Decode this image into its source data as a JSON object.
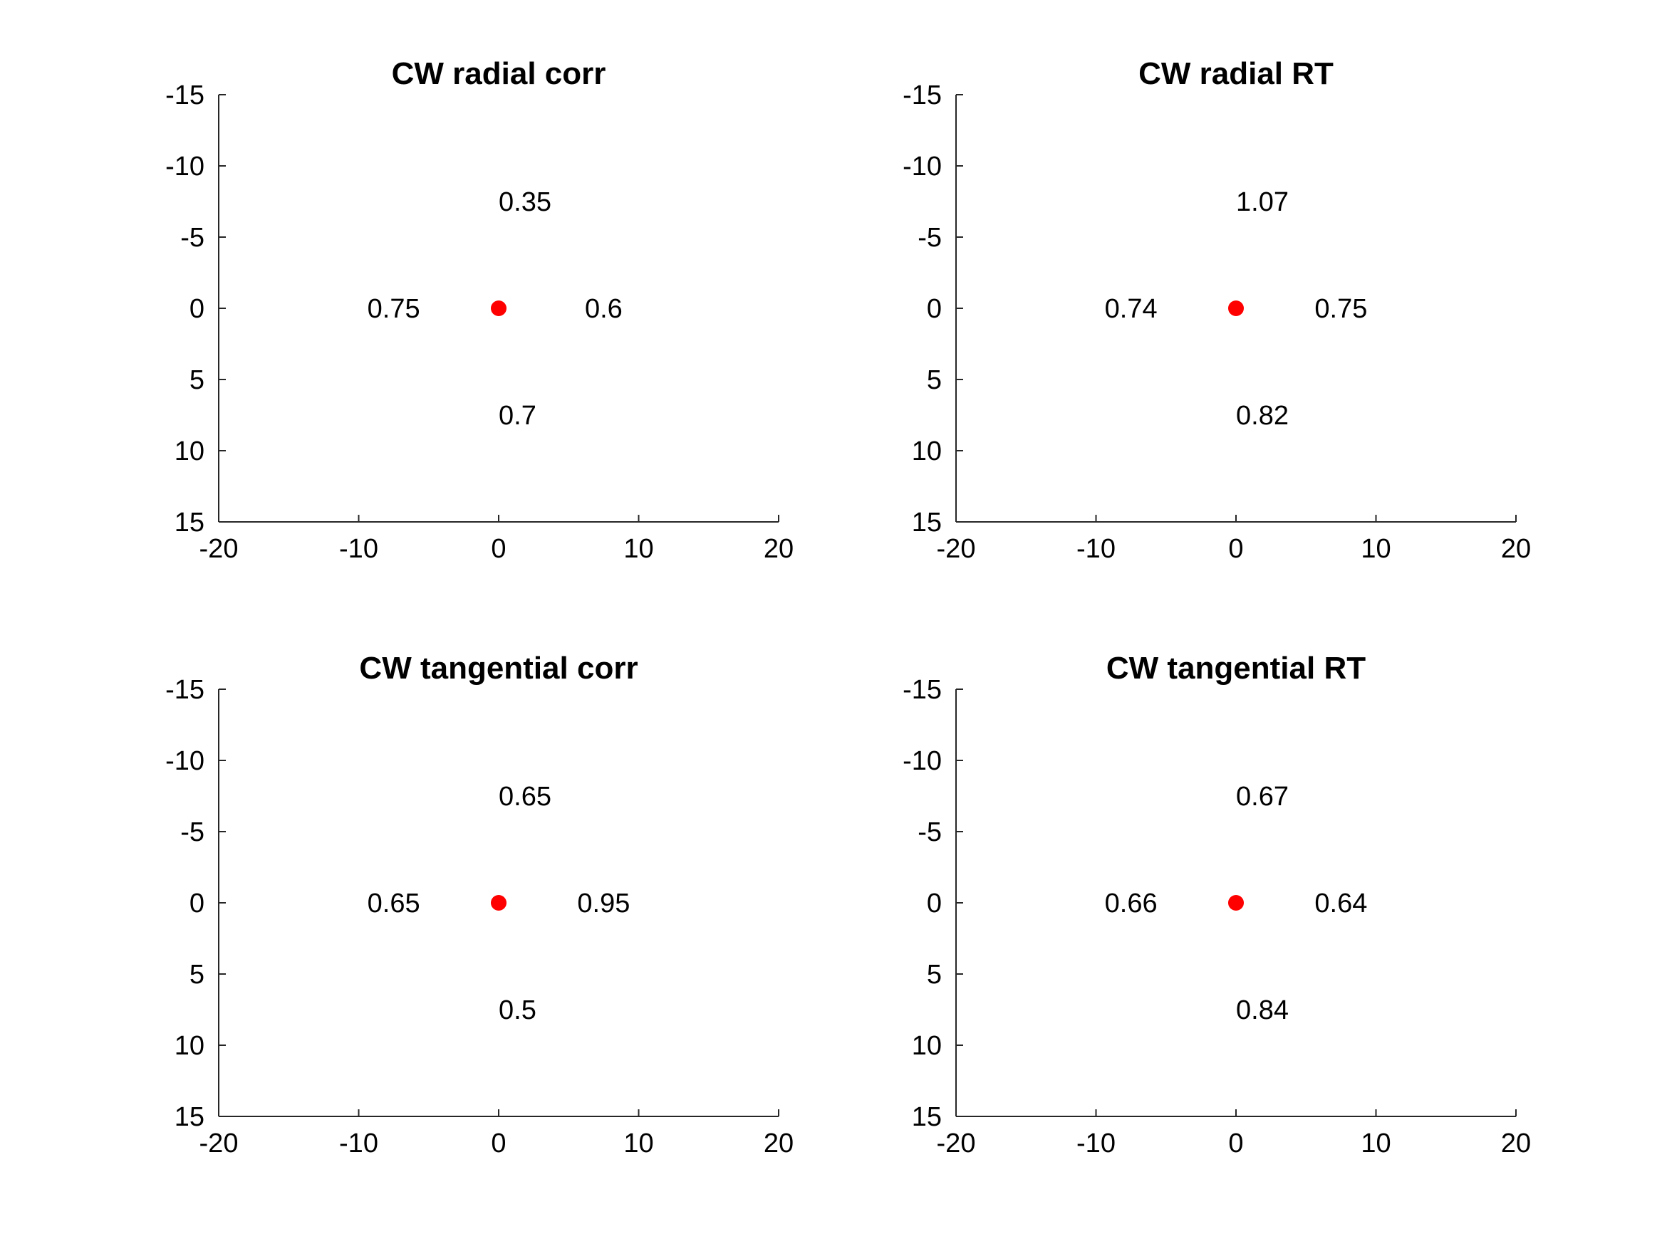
{
  "chart_data": [
    {
      "type": "scatter",
      "title": "CW radial corr",
      "xlim": [
        -20,
        20
      ],
      "ylim": [
        -15,
        15
      ],
      "y_reversed": true,
      "xticks": [
        -20,
        -10,
        0,
        10,
        20
      ],
      "yticks": [
        -15,
        -10,
        -5,
        0,
        5,
        10,
        15
      ],
      "grid": false,
      "marker": {
        "x": 0,
        "y": 0,
        "color": "#ff0000"
      },
      "labels": [
        {
          "x": 0,
          "y": -7.5,
          "text": "0.35"
        },
        {
          "x": -7.5,
          "y": 0,
          "text": "0.75"
        },
        {
          "x": 7.5,
          "y": 0,
          "text": "0.6"
        },
        {
          "x": 0,
          "y": 7.5,
          "text": "0.7"
        }
      ]
    },
    {
      "type": "scatter",
      "title": "CW radial RT",
      "xlim": [
        -20,
        20
      ],
      "ylim": [
        -15,
        15
      ],
      "y_reversed": true,
      "xticks": [
        -20,
        -10,
        0,
        10,
        20
      ],
      "yticks": [
        -15,
        -10,
        -5,
        0,
        5,
        10,
        15
      ],
      "grid": false,
      "marker": {
        "x": 0,
        "y": 0,
        "color": "#ff0000"
      },
      "labels": [
        {
          "x": 0,
          "y": -7.5,
          "text": "1.07"
        },
        {
          "x": -7.5,
          "y": 0,
          "text": "0.74"
        },
        {
          "x": 7.5,
          "y": 0,
          "text": "0.75"
        },
        {
          "x": 0,
          "y": 7.5,
          "text": "0.82"
        }
      ]
    },
    {
      "type": "scatter",
      "title": "CW tangential corr",
      "xlim": [
        -20,
        20
      ],
      "ylim": [
        -15,
        15
      ],
      "y_reversed": true,
      "xticks": [
        -20,
        -10,
        0,
        10,
        20
      ],
      "yticks": [
        -15,
        -10,
        -5,
        0,
        5,
        10,
        15
      ],
      "grid": false,
      "marker": {
        "x": 0,
        "y": 0,
        "color": "#ff0000"
      },
      "labels": [
        {
          "x": 0,
          "y": -7.5,
          "text": "0.65"
        },
        {
          "x": -7.5,
          "y": 0,
          "text": "0.65"
        },
        {
          "x": 7.5,
          "y": 0,
          "text": "0.95"
        },
        {
          "x": 0,
          "y": 7.5,
          "text": "0.5"
        }
      ]
    },
    {
      "type": "scatter",
      "title": "CW tangential RT",
      "xlim": [
        -20,
        20
      ],
      "ylim": [
        -15,
        15
      ],
      "y_reversed": true,
      "xticks": [
        -20,
        -10,
        0,
        10,
        20
      ],
      "yticks": [
        -15,
        -10,
        -5,
        0,
        5,
        10,
        15
      ],
      "grid": false,
      "marker": {
        "x": 0,
        "y": 0,
        "color": "#ff0000"
      },
      "labels": [
        {
          "x": 0,
          "y": -7.5,
          "text": "0.67"
        },
        {
          "x": -7.5,
          "y": 0,
          "text": "0.66"
        },
        {
          "x": 7.5,
          "y": 0,
          "text": "0.64"
        },
        {
          "x": 0,
          "y": 7.5,
          "text": "0.84"
        }
      ]
    }
  ]
}
